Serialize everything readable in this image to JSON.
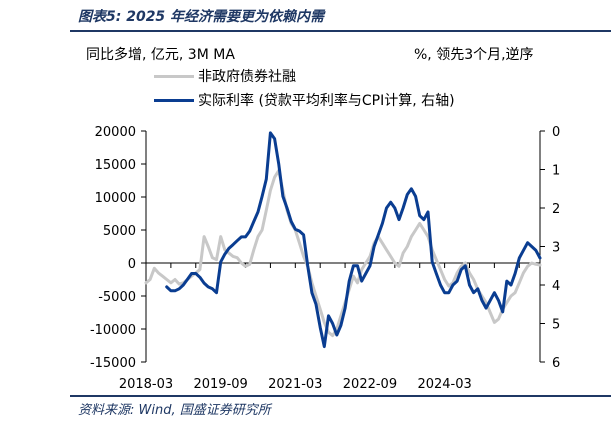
{
  "figure_title": "图表5:  2025 年经济需要更为依赖内需",
  "source": "资料来源: Wind, 国盛证券研究所",
  "unit_left": "同比多增, 亿元, 3M MA",
  "unit_right": "%, 领先3个月,逆序",
  "colors": {
    "series_gray": "#c8c8c8",
    "series_blue": "#0a3d91",
    "axis": "#000000",
    "rule": "#1f3864"
  },
  "chart_data": {
    "type": "line",
    "title": "",
    "xlabel": "",
    "ylabel_left": "",
    "ylabel_right": "",
    "grid": false,
    "legend_position": "top-left",
    "x_start": "2018-03",
    "x_ticks": [
      "2018-03",
      "2019-09",
      "2021-03",
      "2022-09",
      "2024-03"
    ],
    "y_left": {
      "min": -15000,
      "max": 20000,
      "ticks": [
        "20000",
        "15000",
        "10000",
        "5000",
        "0",
        "-5000",
        "-10000",
        "-15000"
      ]
    },
    "y_right": {
      "min": 0,
      "max": 6,
      "inverted": true,
      "ticks": [
        "0",
        "1",
        "2",
        "3",
        "4",
        "5",
        "6"
      ]
    },
    "series": [
      {
        "name": "非政府债券社融",
        "axis": "left",
        "values": [
          -3000,
          -2500,
          -800,
          -1500,
          -2000,
          -2500,
          -3000,
          -2500,
          -3200,
          -3000,
          -2500,
          -2000,
          -1500,
          -1000,
          4000,
          2500,
          800,
          500,
          4000,
          2000,
          1500,
          1000,
          800,
          0,
          -500,
          -200,
          2000,
          4000,
          5000,
          8000,
          11000,
          13000,
          14000,
          11000,
          8000,
          6000,
          5000,
          3000,
          1000,
          -500,
          -3000,
          -5000,
          -7000,
          -9000,
          -10500,
          -11000,
          -10000,
          -8000,
          -6000,
          -4000,
          -2000,
          -3000,
          -1000,
          0,
          1000,
          3000,
          4000,
          3000,
          2000,
          1000,
          0,
          -500,
          1500,
          2500,
          4000,
          5000,
          6000,
          5000,
          4000,
          2000,
          500,
          -1000,
          -2500,
          -3500,
          -3000,
          -1500,
          -500,
          0,
          -1500,
          -2500,
          -4000,
          -5000,
          -6000,
          -7500,
          -9000,
          -8500,
          -7000,
          -6000,
          -5000,
          -4500,
          -3000,
          -1500,
          -500,
          0,
          -200,
          -300
        ]
      },
      {
        "name": "实际利率 (贷款平均利率与CPI计算, 右轴)",
        "axis": "right",
        "values": [
          null,
          null,
          null,
          null,
          null,
          4.05,
          4.15,
          4.15,
          4.1,
          4.0,
          3.85,
          3.7,
          3.7,
          3.8,
          3.95,
          4.05,
          4.1,
          4.2,
          3.4,
          3.2,
          3.05,
          2.95,
          2.85,
          2.75,
          2.75,
          2.6,
          2.35,
          2.1,
          1.7,
          1.25,
          0.05,
          0.2,
          0.85,
          1.7,
          2.0,
          2.35,
          2.55,
          2.6,
          2.7,
          3.5,
          4.2,
          4.5,
          5.1,
          5.6,
          4.8,
          5.0,
          5.3,
          5.05,
          4.6,
          3.9,
          3.5,
          3.5,
          3.9,
          3.7,
          3.5,
          3.0,
          2.7,
          2.4,
          2.0,
          1.85,
          2.0,
          2.3,
          2.0,
          1.65,
          1.5,
          1.7,
          2.2,
          2.3,
          2.1,
          3.4,
          3.7,
          4.0,
          4.2,
          4.2,
          4.0,
          3.9,
          3.6,
          3.5,
          4.0,
          4.2,
          4.1,
          4.4,
          4.6,
          4.4,
          4.2,
          4.4,
          4.7,
          3.9,
          4.0,
          3.7,
          3.3,
          3.1,
          2.9,
          3.0,
          3.1,
          3.3
        ]
      }
    ]
  }
}
